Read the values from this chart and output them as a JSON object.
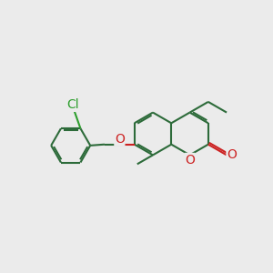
{
  "bg_color": "#ebebeb",
  "bond_color": "#2d6b3a",
  "oxygen_color": "#cc2222",
  "chlorine_color": "#2d9e2d",
  "line_width": 1.5,
  "font_size": 10,
  "fig_size": [
    3.0,
    3.0
  ],
  "dpi": 100,
  "xlim": [
    0,
    10
  ],
  "ylim": [
    0,
    10
  ]
}
